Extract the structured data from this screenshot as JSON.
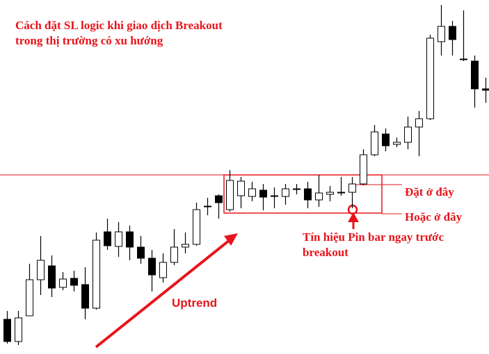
{
  "chart_data": {
    "type": "candlestick",
    "title_lines": [
      "Cách đặt SL logic khi giao dịch Breakout",
      "trong thị trường có xu hướng"
    ],
    "ylim": [
      0,
      510
    ],
    "level": 258,
    "open": [
      50,
      18,
      55,
      107,
      127,
      96,
      109,
      100,
      66,
      176,
      155,
      176,
      154,
      138,
      110,
      132,
      154,
      158,
      213,
      228,
      208,
      228,
      227,
      236,
      228,
      227,
      238,
      238,
      222,
      230,
      233,
      233,
      245,
      287,
      317,
      302,
      305,
      327,
      339,
      450,
      472,
      425,
      422,
      382
    ],
    "high": [
      62,
      62,
      130,
      170,
      142,
      118,
      120,
      125,
      175,
      195,
      190,
      185,
      170,
      150,
      145,
      180,
      175,
      218,
      225,
      230,
      265,
      255,
      248,
      245,
      240,
      245,
      245,
      248,
      258,
      242,
      255,
      255,
      295,
      330,
      325,
      312,
      342,
      350,
      460,
      503,
      480,
      495,
      430,
      398
    ],
    "low": [
      15,
      13,
      55,
      85,
      82,
      92,
      90,
      50,
      64,
      150,
      140,
      135,
      130,
      90,
      103,
      128,
      145,
      156,
      200,
      195,
      205,
      210,
      220,
      207,
      210,
      215,
      230,
      210,
      212,
      220,
      228,
      210,
      243,
      285,
      292,
      298,
      295,
      285,
      337,
      430,
      430,
      422,
      355,
      362
    ],
    "close": [
      18,
      52,
      107,
      135,
      95,
      108,
      99,
      66,
      164,
      156,
      176,
      154,
      138,
      114,
      132,
      154,
      158,
      208,
      213,
      218,
      250,
      249,
      238,
      226,
      228,
      238,
      238,
      222,
      232,
      233,
      233,
      245,
      287,
      320,
      300,
      305,
      327,
      339,
      455,
      472,
      453,
      425,
      382,
      380
    ],
    "uptrend_label": "Uptrend",
    "label_place": "Đặt ở đây",
    "label_or": "Hoặc ở đây",
    "signal_lines": [
      "Tín hiệu Pin bar ngay trước",
      "breakout"
    ]
  }
}
